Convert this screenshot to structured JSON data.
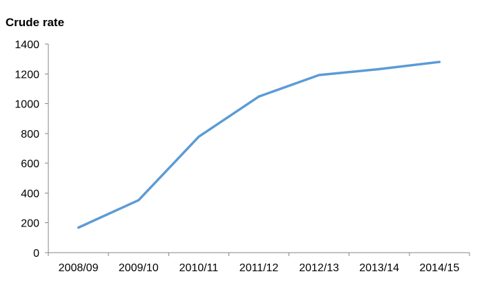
{
  "chart_data": {
    "type": "line",
    "title": "",
    "ylabel": "Crude rate",
    "xlabel": "",
    "categories": [
      "2008/09",
      "2009/10",
      "2010/11",
      "2011/12",
      "2012/13",
      "2013/14",
      "2014/15"
    ],
    "series": [
      {
        "values": [
          168,
          352,
          778,
          1048,
          1192,
          1232,
          1280
        ],
        "color": "#5B9BD5"
      }
    ],
    "ylim": [
      0,
      1400
    ],
    "yticks": [
      0,
      200,
      400,
      600,
      800,
      1000,
      1200,
      1400
    ],
    "grid": false,
    "legend": "none"
  }
}
